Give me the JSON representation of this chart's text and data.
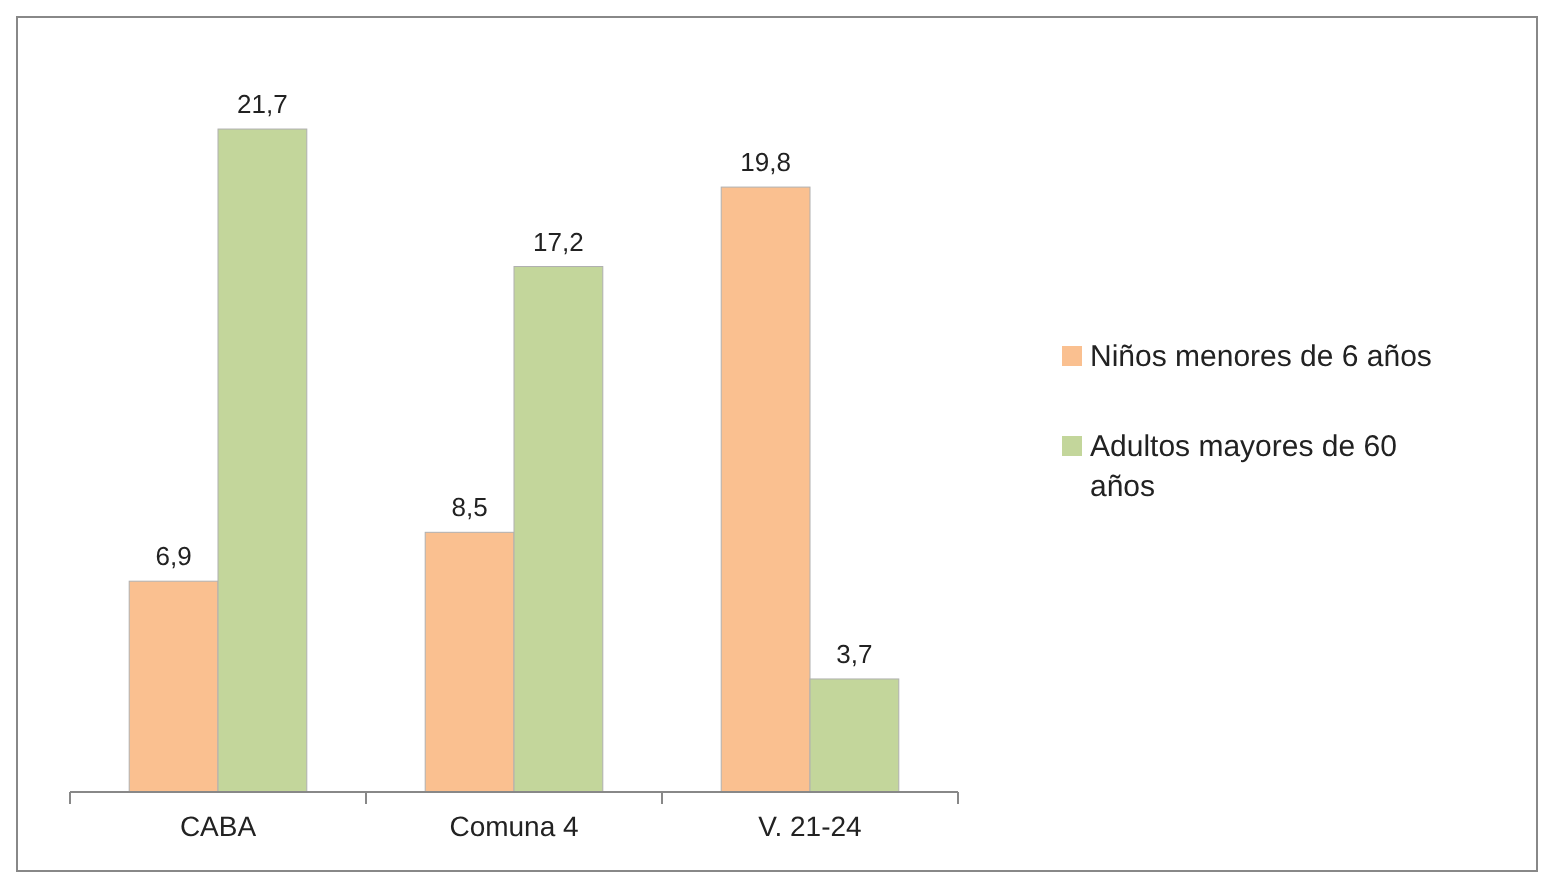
{
  "chart_data": {
    "type": "bar",
    "categories": [
      "CABA",
      "Comuna 4",
      "V. 21-24"
    ],
    "series": [
      {
        "name": "Niños menores de 6 años",
        "color": "#fac090",
        "values": [
          6.9,
          8.5,
          19.8
        ],
        "value_labels": [
          "6,9",
          "8,5",
          "19,8"
        ]
      },
      {
        "name": "Adultos mayores de 60 años",
        "color": "#c3d69b",
        "values": [
          21.7,
          17.2,
          3.7
        ],
        "value_labels": [
          "21,7",
          "17,2",
          "3,7"
        ]
      }
    ],
    "legend": "right",
    "grid": false
  }
}
